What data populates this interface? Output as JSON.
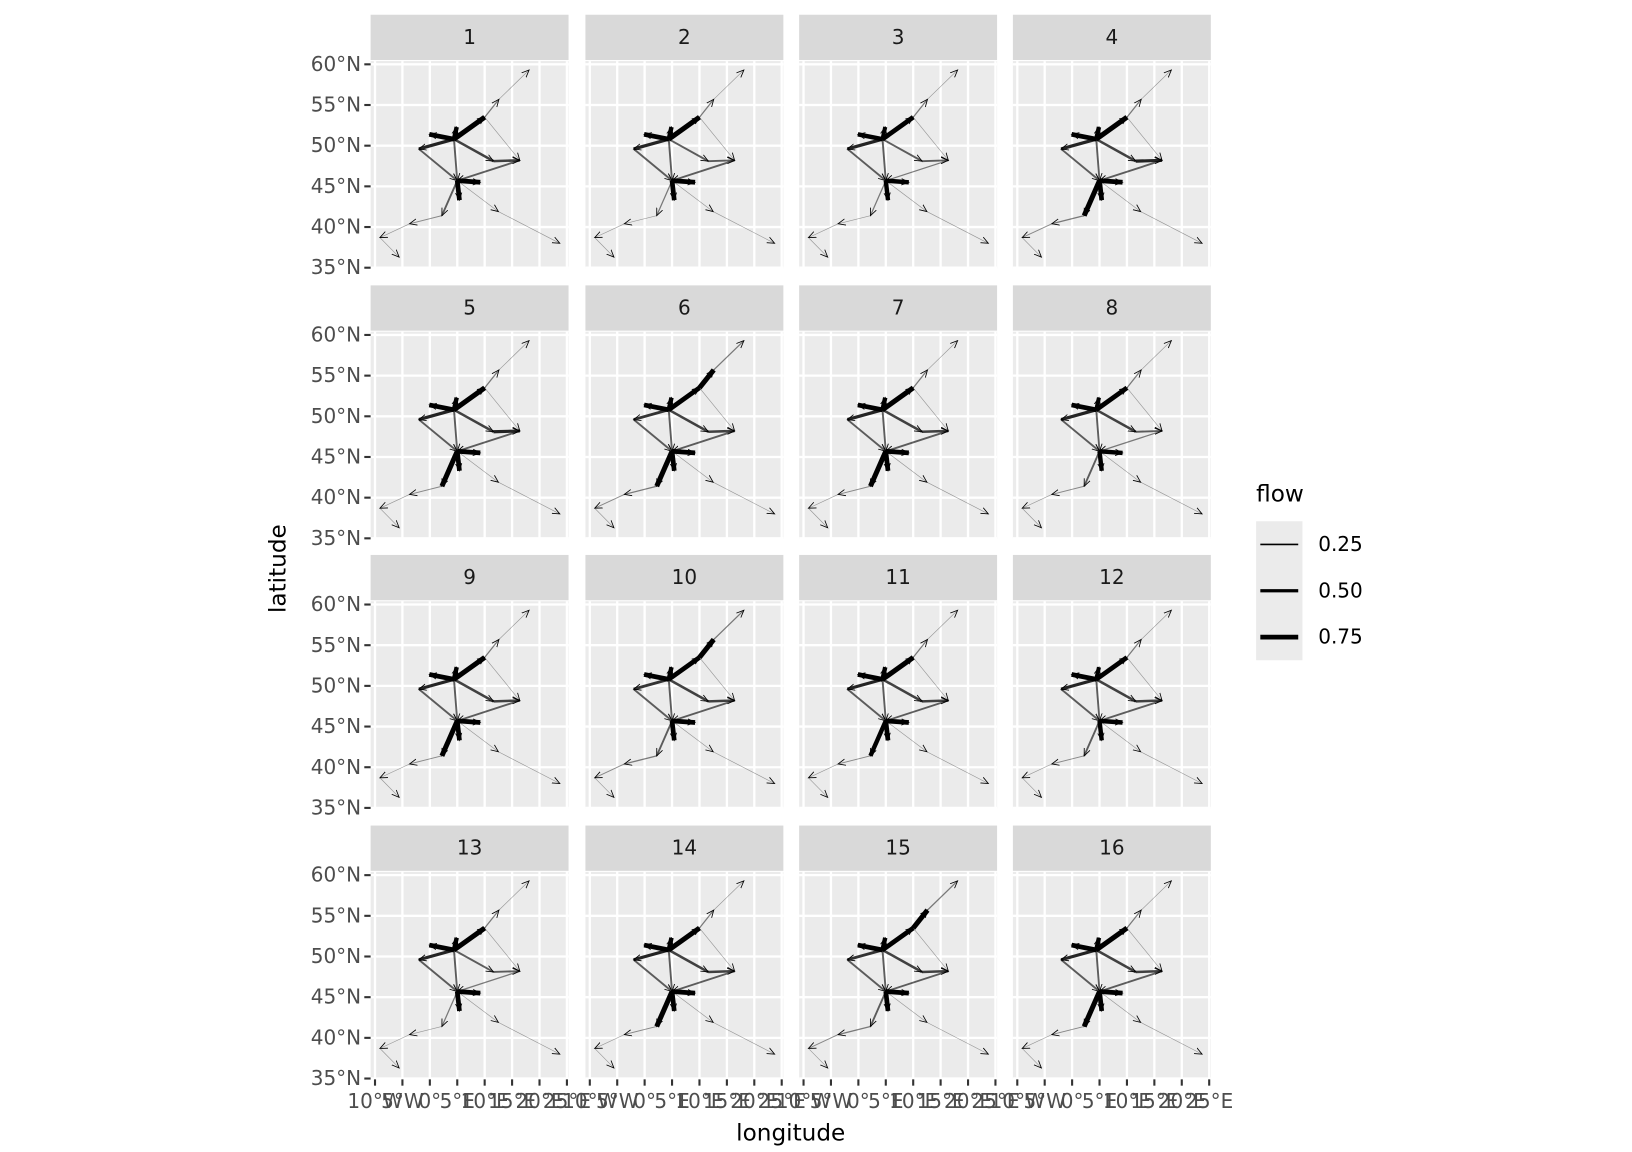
{
  "chart_data": {
    "type": "flowmap",
    "xlabel": "longitude",
    "ylabel": "latitude",
    "xlim": [
      -10.8,
      25.3
    ],
    "ylim": [
      34.9,
      60.4
    ],
    "xticks": [
      {
        "value": -10,
        "label": "10°W"
      },
      {
        "value": -5,
        "label": "5°W"
      },
      {
        "value": 0,
        "label": "0°"
      },
      {
        "value": 5,
        "label": "5°E"
      },
      {
        "value": 10,
        "label": "10°E"
      },
      {
        "value": 15,
        "label": "15°E"
      },
      {
        "value": 20,
        "label": "20°E"
      },
      {
        "value": 25,
        "label": "25°E"
      }
    ],
    "yticks": [
      {
        "value": 35,
        "label": "35°N"
      },
      {
        "value": 40,
        "label": "40°N"
      },
      {
        "value": 45,
        "label": "45°N"
      },
      {
        "value": 50,
        "label": "50°N"
      },
      {
        "value": 55,
        "label": "55°N"
      },
      {
        "value": 60,
        "label": "60°N"
      }
    ],
    "grid": true,
    "color": "#000000",
    "legend": {
      "title": "flow",
      "breaks": [
        {
          "value": 0.25,
          "label": "0.25"
        },
        {
          "value": 0.5,
          "label": "0.50"
        },
        {
          "value": 0.75,
          "label": "0.75"
        }
      ]
    },
    "nodes": [
      [
        4.4,
        50.8
      ],
      [
        5.0,
        45.7
      ],
      [
        -2.0,
        49.6
      ],
      [
        16.4,
        48.2
      ],
      [
        18.1,
        59.3
      ],
      [
        12.6,
        55.7
      ],
      [
        10.0,
        53.5
      ],
      [
        2.2,
        41.4
      ],
      [
        -3.7,
        40.4
      ],
      [
        -9.1,
        38.7
      ],
      [
        -5.6,
        36.3
      ],
      [
        23.7,
        38.0
      ],
      [
        12.5,
        41.9
      ],
      [
        9.2,
        45.5
      ],
      [
        5.4,
        43.3
      ],
      [
        4.9,
        52.3
      ],
      [
        -0.1,
        51.4
      ],
      [
        11.6,
        48.1
      ]
    ],
    "edges": [
      [
        0,
        6
      ],
      [
        0,
        15
      ],
      [
        0,
        16
      ],
      [
        0,
        2
      ],
      [
        2,
        1
      ],
      [
        0,
        17
      ],
      [
        17,
        3
      ],
      [
        1,
        13
      ],
      [
        1,
        14
      ],
      [
        1,
        7
      ],
      [
        7,
        8
      ],
      [
        8,
        9
      ],
      [
        9,
        10
      ],
      [
        6,
        5
      ],
      [
        5,
        4
      ],
      [
        1,
        12
      ],
      [
        12,
        11
      ],
      [
        0,
        1
      ],
      [
        3,
        1
      ],
      [
        6,
        3
      ]
    ],
    "panels": [
      {
        "label": "1",
        "flows": [
          0.8,
          0.7,
          0.75,
          0.5,
          0.3,
          0.4,
          0.4,
          0.75,
          0.75,
          0.3,
          0.15,
          0.1,
          0.1,
          0.2,
          0.1,
          0.1,
          0.1,
          0.3,
          0.3,
          0.1
        ]
      },
      {
        "label": "2",
        "flows": [
          0.8,
          0.7,
          0.75,
          0.5,
          0.3,
          0.3,
          0.3,
          0.75,
          0.75,
          0.2,
          0.1,
          0.1,
          0.1,
          0.2,
          0.1,
          0.1,
          0.1,
          0.3,
          0.3,
          0.1
        ]
      },
      {
        "label": "3",
        "flows": [
          0.75,
          0.65,
          0.7,
          0.5,
          0.3,
          0.3,
          0.3,
          0.7,
          0.7,
          0.2,
          0.1,
          0.1,
          0.1,
          0.2,
          0.1,
          0.1,
          0.1,
          0.3,
          0.2,
          0.1
        ]
      },
      {
        "label": "4",
        "flows": [
          0.8,
          0.7,
          0.75,
          0.5,
          0.3,
          0.4,
          0.5,
          0.75,
          0.75,
          0.8,
          0.2,
          0.15,
          0.1,
          0.2,
          0.1,
          0.1,
          0.1,
          0.3,
          0.3,
          0.1
        ]
      },
      {
        "label": "5",
        "flows": [
          0.8,
          0.7,
          0.75,
          0.5,
          0.3,
          0.4,
          0.5,
          0.75,
          0.75,
          0.8,
          0.15,
          0.1,
          0.1,
          0.2,
          0.1,
          0.1,
          0.1,
          0.3,
          0.3,
          0.1
        ]
      },
      {
        "label": "6",
        "flows": [
          0.75,
          0.7,
          0.75,
          0.45,
          0.3,
          0.4,
          0.4,
          0.75,
          0.75,
          0.8,
          0.2,
          0.15,
          0.1,
          0.8,
          0.2,
          0.1,
          0.1,
          0.3,
          0.3,
          0.1
        ]
      },
      {
        "label": "7",
        "flows": [
          0.8,
          0.7,
          0.75,
          0.5,
          0.3,
          0.4,
          0.4,
          0.75,
          0.75,
          0.8,
          0.15,
          0.1,
          0.1,
          0.2,
          0.1,
          0.1,
          0.1,
          0.3,
          0.3,
          0.1
        ]
      },
      {
        "label": "8",
        "flows": [
          0.75,
          0.65,
          0.75,
          0.5,
          0.3,
          0.4,
          0.3,
          0.7,
          0.7,
          0.3,
          0.15,
          0.1,
          0.1,
          0.2,
          0.1,
          0.1,
          0.1,
          0.3,
          0.2,
          0.1
        ]
      },
      {
        "label": "9",
        "flows": [
          0.8,
          0.7,
          0.75,
          0.5,
          0.3,
          0.4,
          0.4,
          0.75,
          0.75,
          0.8,
          0.15,
          0.1,
          0.1,
          0.2,
          0.1,
          0.1,
          0.1,
          0.3,
          0.3,
          0.1
        ]
      },
      {
        "label": "10",
        "flows": [
          0.75,
          0.7,
          0.75,
          0.45,
          0.3,
          0.4,
          0.4,
          0.75,
          0.75,
          0.3,
          0.2,
          0.15,
          0.1,
          0.8,
          0.2,
          0.1,
          0.1,
          0.3,
          0.3,
          0.1
        ]
      },
      {
        "label": "11",
        "flows": [
          0.8,
          0.7,
          0.75,
          0.5,
          0.3,
          0.4,
          0.4,
          0.75,
          0.75,
          0.7,
          0.15,
          0.1,
          0.1,
          0.2,
          0.1,
          0.1,
          0.1,
          0.3,
          0.3,
          0.1
        ]
      },
      {
        "label": "12",
        "flows": [
          0.75,
          0.65,
          0.75,
          0.5,
          0.3,
          0.4,
          0.4,
          0.7,
          0.7,
          0.3,
          0.15,
          0.1,
          0.1,
          0.2,
          0.1,
          0.1,
          0.1,
          0.3,
          0.3,
          0.1
        ]
      },
      {
        "label": "13",
        "flows": [
          0.8,
          0.7,
          0.75,
          0.5,
          0.3,
          0.3,
          0.3,
          0.75,
          0.75,
          0.2,
          0.1,
          0.1,
          0.1,
          0.2,
          0.1,
          0.1,
          0.1,
          0.3,
          0.2,
          0.1
        ]
      },
      {
        "label": "14",
        "flows": [
          0.8,
          0.7,
          0.75,
          0.5,
          0.3,
          0.4,
          0.4,
          0.75,
          0.75,
          0.8,
          0.15,
          0.1,
          0.1,
          0.2,
          0.1,
          0.1,
          0.1,
          0.3,
          0.3,
          0.1
        ]
      },
      {
        "label": "15",
        "flows": [
          0.75,
          0.7,
          0.75,
          0.45,
          0.3,
          0.4,
          0.4,
          0.75,
          0.75,
          0.3,
          0.2,
          0.15,
          0.1,
          0.8,
          0.2,
          0.1,
          0.1,
          0.3,
          0.3,
          0.1
        ]
      },
      {
        "label": "16",
        "flows": [
          0.8,
          0.7,
          0.75,
          0.5,
          0.3,
          0.4,
          0.4,
          0.75,
          0.75,
          0.8,
          0.15,
          0.1,
          0.1,
          0.2,
          0.1,
          0.1,
          0.1,
          0.3,
          0.3,
          0.1
        ]
      }
    ]
  }
}
